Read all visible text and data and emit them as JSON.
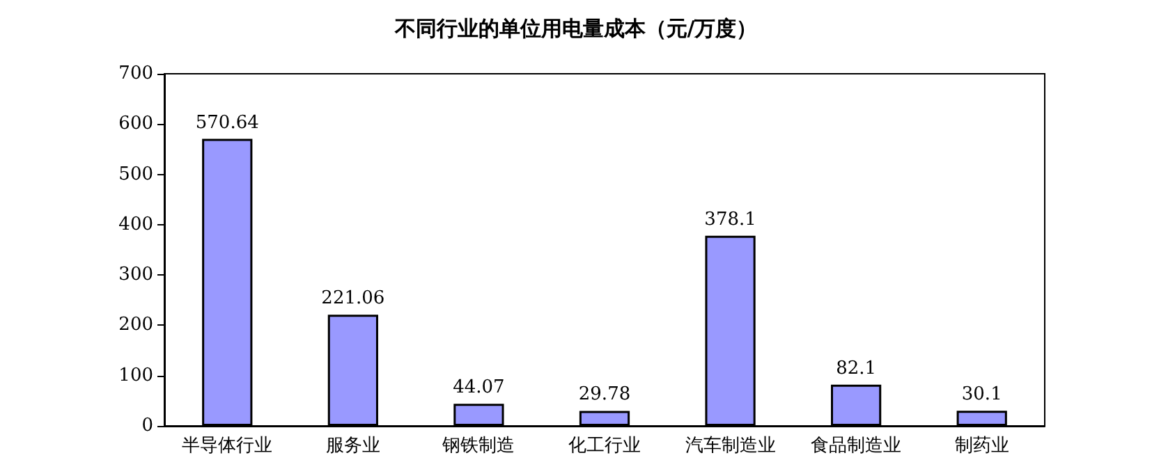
{
  "chart_data": {
    "type": "bar",
    "title": "不同行业的单位用电量成本（元/万度）",
    "categories": [
      "半导体行业",
      "服务业",
      "钢铁制造",
      "化工行业",
      "汽车制造业",
      "食品制造业",
      "制药业"
    ],
    "values": [
      570.64,
      221.06,
      44.07,
      29.78,
      378.1,
      82.1,
      30.1
    ],
    "color": "#9999ff",
    "ylim": [
      0,
      700
    ],
    "yticks": [
      0,
      100,
      200,
      300,
      400,
      500,
      600,
      700
    ],
    "data_labels": true
  }
}
